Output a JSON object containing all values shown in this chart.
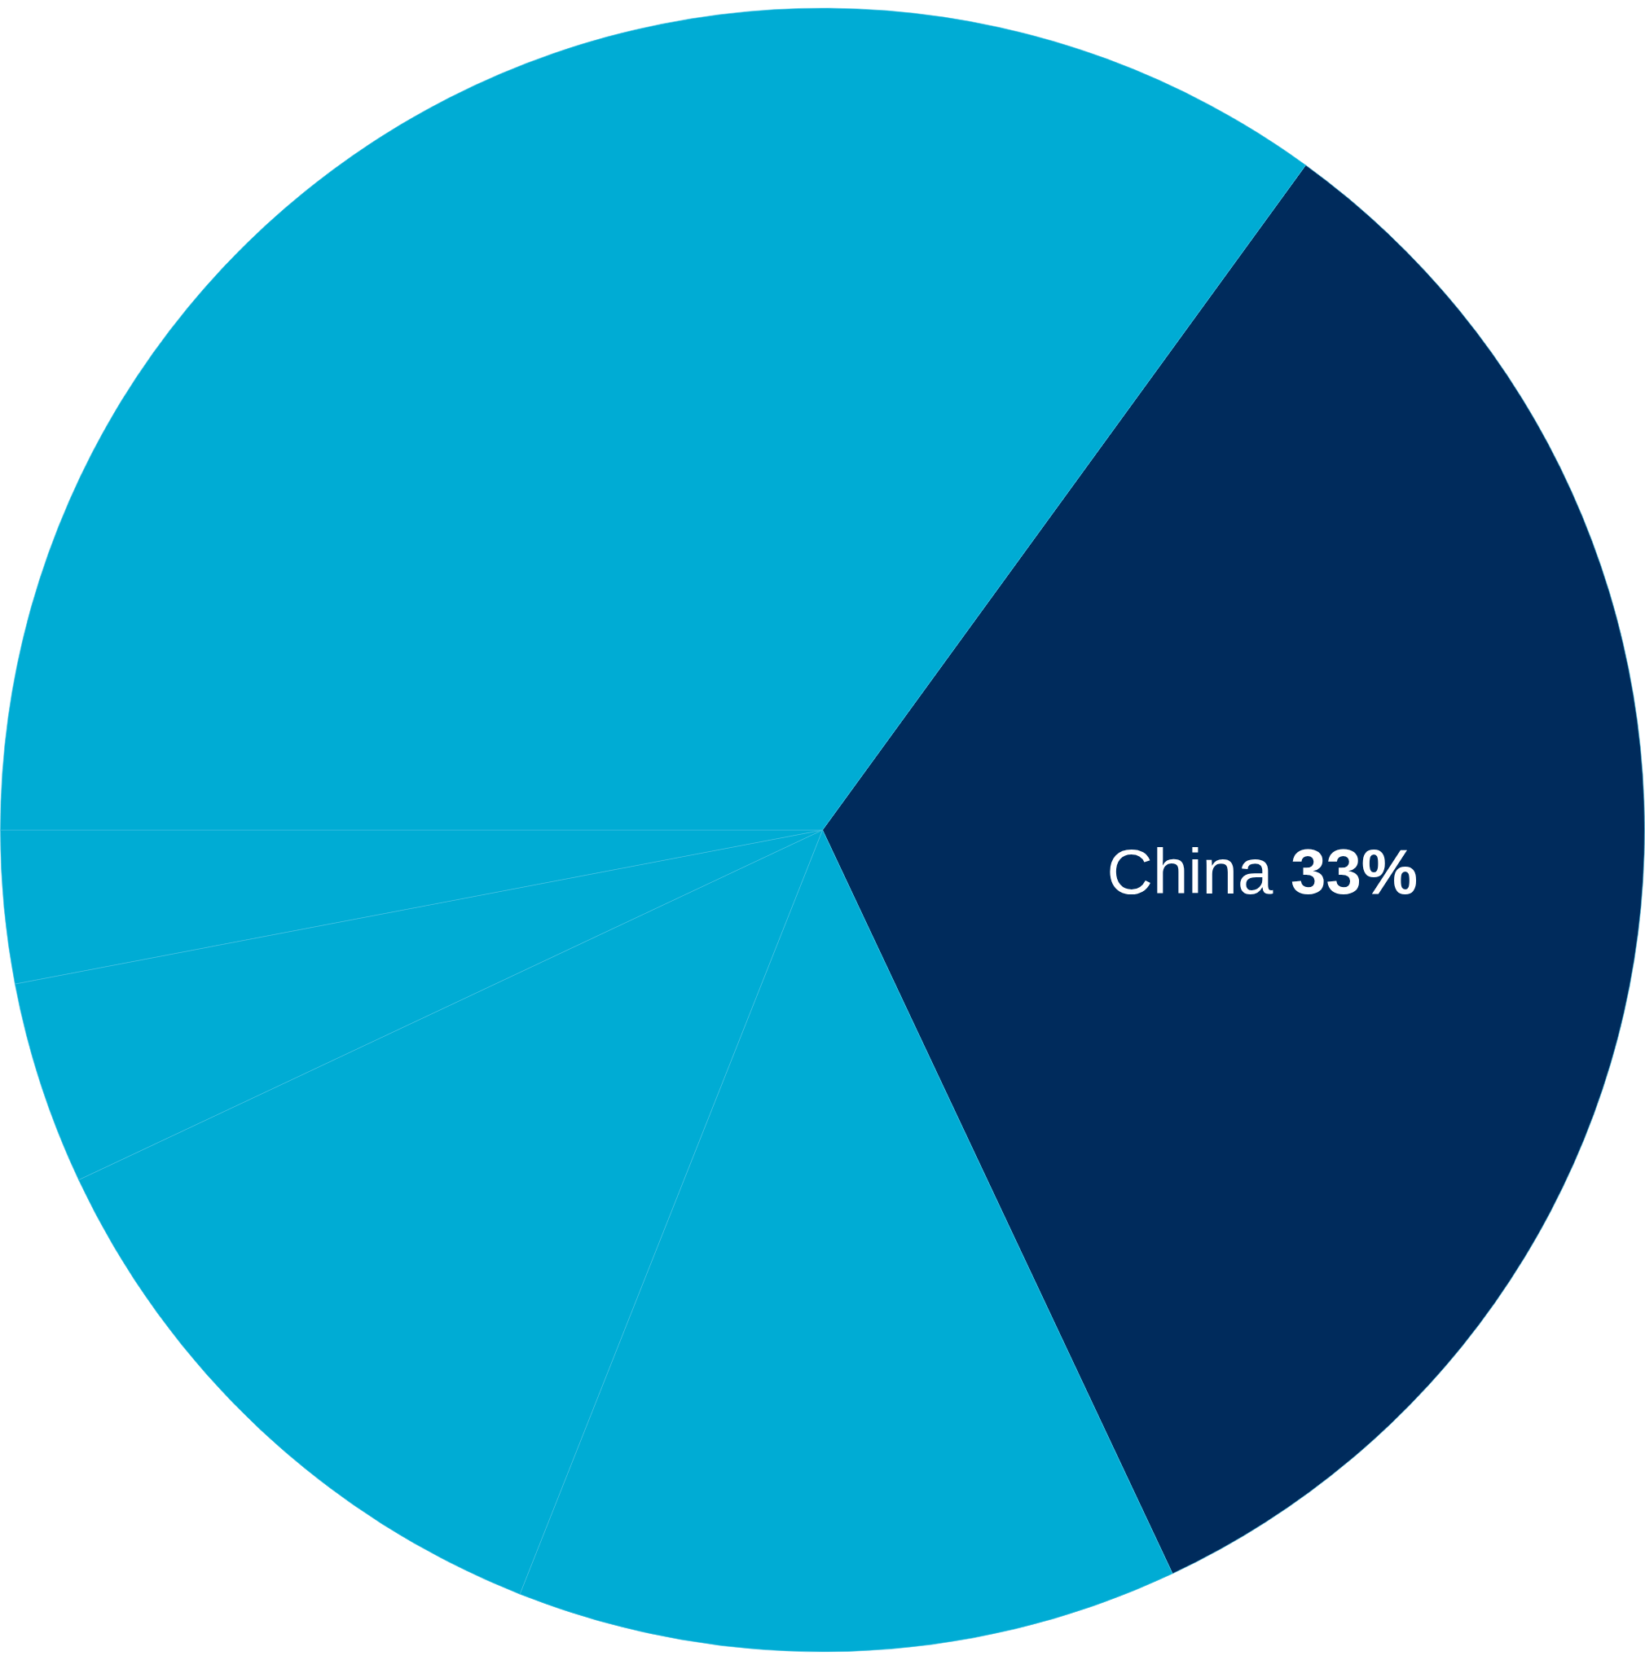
{
  "chart_data": {
    "type": "pie",
    "categories": [
      "China",
      null,
      null,
      null,
      null,
      null
    ],
    "values": [
      33,
      13,
      12,
      4,
      3,
      35
    ],
    "value_labels": [
      "33%",
      null,
      null,
      null,
      null,
      null
    ],
    "colors": [
      "#002b5c",
      "#00acd4",
      "#00acd4",
      "#00acd4",
      "#00acd4",
      "#00acd4"
    ],
    "legend": false
  }
}
